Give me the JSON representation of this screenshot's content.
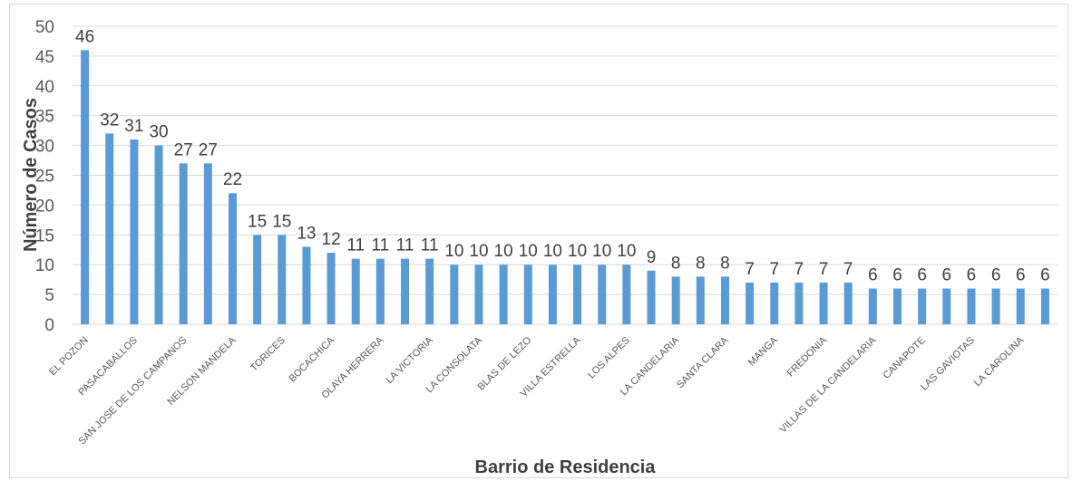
{
  "chart_data": {
    "type": "bar",
    "title": "",
    "xlabel": "Barrio de Residencia",
    "ylabel": "Número de Casos",
    "ylim": [
      0,
      50
    ],
    "yticks": [
      0,
      5,
      10,
      15,
      20,
      25,
      30,
      35,
      40,
      45,
      50
    ],
    "grid": true,
    "legend": "none",
    "bar_color": "#5b9bd5",
    "categories": [
      {
        "label": "EL POZON",
        "value": 46,
        "shown": true
      },
      {
        "label": "",
        "value": 32,
        "shown": false
      },
      {
        "label": "PASACABALLOS",
        "value": 31,
        "shown": true
      },
      {
        "label": "",
        "value": 30,
        "shown": false
      },
      {
        "label": "SAN JOSE DE LOS CAMPANOS",
        "value": 27,
        "shown": true
      },
      {
        "label": "",
        "value": 27,
        "shown": false
      },
      {
        "label": "NELSON MANDELA",
        "value": 22,
        "shown": true
      },
      {
        "label": "",
        "value": 15,
        "shown": false
      },
      {
        "label": "TORICES",
        "value": 15,
        "shown": true
      },
      {
        "label": "",
        "value": 13,
        "shown": false
      },
      {
        "label": "BOCACHICA",
        "value": 12,
        "shown": true
      },
      {
        "label": "",
        "value": 11,
        "shown": false
      },
      {
        "label": "OLAYA HERRERA",
        "value": 11,
        "shown": true
      },
      {
        "label": "",
        "value": 11,
        "shown": false
      },
      {
        "label": "LA VICTORIA",
        "value": 11,
        "shown": true
      },
      {
        "label": "",
        "value": 10,
        "shown": false
      },
      {
        "label": "LA CONSOLATA",
        "value": 10,
        "shown": true
      },
      {
        "label": "",
        "value": 10,
        "shown": false
      },
      {
        "label": "BLAS DE LEZO",
        "value": 10,
        "shown": true
      },
      {
        "label": "",
        "value": 10,
        "shown": false
      },
      {
        "label": "VILLA ESTRELLA",
        "value": 10,
        "shown": true
      },
      {
        "label": "",
        "value": 10,
        "shown": false
      },
      {
        "label": "LOS ALPES",
        "value": 10,
        "shown": true
      },
      {
        "label": "",
        "value": 9,
        "shown": false
      },
      {
        "label": "LA CANDELARIA",
        "value": 8,
        "shown": true
      },
      {
        "label": "",
        "value": 8,
        "shown": false
      },
      {
        "label": "SANTA CLARA",
        "value": 8,
        "shown": true
      },
      {
        "label": "",
        "value": 7,
        "shown": false
      },
      {
        "label": "MANGA",
        "value": 7,
        "shown": true
      },
      {
        "label": "",
        "value": 7,
        "shown": false
      },
      {
        "label": "FREDONIA",
        "value": 7,
        "shown": true
      },
      {
        "label": "",
        "value": 7,
        "shown": false
      },
      {
        "label": "VILLAS DE LA CANDELARIA",
        "value": 6,
        "shown": true
      },
      {
        "label": "",
        "value": 6,
        "shown": false
      },
      {
        "label": "CANAPOTE",
        "value": 6,
        "shown": true
      },
      {
        "label": "",
        "value": 6,
        "shown": false
      },
      {
        "label": "LAS GAVIOTAS",
        "value": 6,
        "shown": true
      },
      {
        "label": "",
        "value": 6,
        "shown": false
      },
      {
        "label": "LA CAROLINA",
        "value": 6,
        "shown": true
      },
      {
        "label": "",
        "value": 6,
        "shown": false
      }
    ]
  }
}
